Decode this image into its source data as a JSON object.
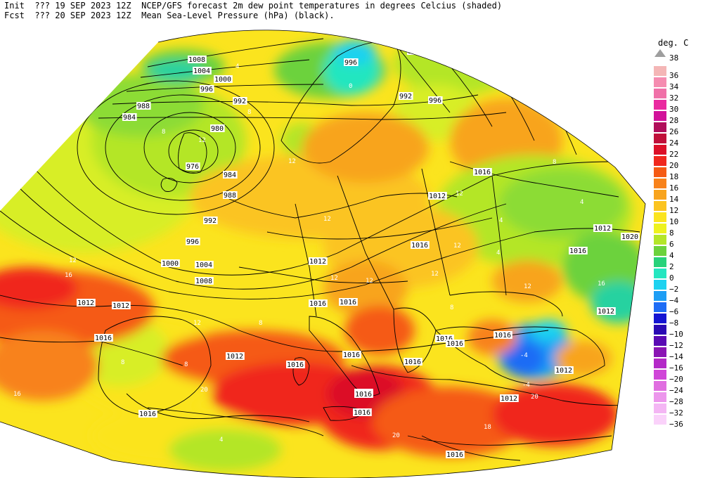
{
  "header": {
    "init_label": "Init",
    "init_time": "??? 19 SEP 2023 12Z",
    "fcst_label": "Fcst",
    "fcst_time": "??? 20 SEP 2023 12Z",
    "line1_desc": "NCEP/GFS forecast 2m dew point temperatures in degrees Celcius (shaded)",
    "line2_desc": "Mean Sea-Level Pressure (hPa) (black)."
  },
  "legend": {
    "unit": "deg. C",
    "top_label": "38",
    "bins": [
      {
        "label": "36",
        "color": "#f4b6b6"
      },
      {
        "label": "34",
        "color": "#f58cb0"
      },
      {
        "label": "32",
        "color": "#f070a8"
      },
      {
        "label": "30",
        "color": "#ea2aa0"
      },
      {
        "label": "28",
        "color": "#d2129a"
      },
      {
        "label": "26",
        "color": "#b00e5a"
      },
      {
        "label": "24",
        "color": "#c0103a"
      },
      {
        "label": "22",
        "color": "#dc1028"
      },
      {
        "label": "20",
        "color": "#f0281e"
      },
      {
        "label": "18",
        "color": "#f55a14"
      },
      {
        "label": "16",
        "color": "#f8821a"
      },
      {
        "label": "14",
        "color": "#f8a41e"
      },
      {
        "label": "12",
        "color": "#fbc420"
      },
      {
        "label": "10",
        "color": "#fbe41e"
      },
      {
        "label": "8",
        "color": "#eef21e"
      },
      {
        "label": "6",
        "color": "#b4e628"
      },
      {
        "label": "4",
        "color": "#6cd23c"
      },
      {
        "label": "2",
        "color": "#28d27a"
      },
      {
        "label": "0",
        "color": "#24e6c0"
      },
      {
        "label": "−2",
        "color": "#1ed2f0"
      },
      {
        "label": "−4",
        "color": "#1e9ef5"
      },
      {
        "label": "−6",
        "color": "#1e6cf5"
      },
      {
        "label": "−8",
        "color": "#1414d2"
      },
      {
        "label": "−10",
        "color": "#2a0ab4"
      },
      {
        "label": "−12",
        "color": "#5a0ab4"
      },
      {
        "label": "−14",
        "color": "#8a14b4"
      },
      {
        "label": "−16",
        "color": "#b428c8"
      },
      {
        "label": "−20",
        "color": "#d046d8"
      },
      {
        "label": "−24",
        "color": "#e06ee0"
      },
      {
        "label": "−28",
        "color": "#ec96ec"
      },
      {
        "label": "−32",
        "color": "#f4b6f4"
      },
      {
        "label": "−36",
        "color": "#fad2fa"
      }
    ]
  },
  "isobar_labels": [
    {
      "text": "988"
    },
    {
      "text": "1008"
    },
    {
      "text": "1004"
    },
    {
      "text": "1000"
    },
    {
      "text": "996"
    },
    {
      "text": "996"
    },
    {
      "text": "992"
    },
    {
      "text": "988"
    },
    {
      "text": "984"
    },
    {
      "text": "980"
    },
    {
      "text": "976"
    },
    {
      "text": "984"
    },
    {
      "text": "988"
    },
    {
      "text": "992"
    },
    {
      "text": "996"
    },
    {
      "text": "1000"
    },
    {
      "text": "1004"
    },
    {
      "text": "1008"
    },
    {
      "text": "1012"
    },
    {
      "text": "1016"
    },
    {
      "text": "1012"
    },
    {
      "text": "1012"
    },
    {
      "text": "1016"
    },
    {
      "text": "1016"
    },
    {
      "text": "1016"
    },
    {
      "text": "1016"
    },
    {
      "text": "1012"
    },
    {
      "text": "1016"
    },
    {
      "text": "1016"
    },
    {
      "text": "1016"
    },
    {
      "text": "1012"
    },
    {
      "text": "1016"
    },
    {
      "text": "1016"
    },
    {
      "text": "1012"
    },
    {
      "text": "1012"
    },
    {
      "text": "1016"
    },
    {
      "text": "1016"
    },
    {
      "text": "1012"
    },
    {
      "text": "1016"
    },
    {
      "text": "1020"
    },
    {
      "text": "1016"
    },
    {
      "text": "992"
    },
    {
      "text": "996"
    },
    {
      "text": "1012"
    },
    {
      "text": "1008"
    },
    {
      "text": "1016"
    },
    {
      "text": "1016"
    },
    {
      "text": "1016"
    }
  ],
  "dewpoint_labels": [
    {
      "text": "12"
    },
    {
      "text": "16"
    },
    {
      "text": "20"
    },
    {
      "text": "20"
    },
    {
      "text": "20"
    },
    {
      "text": "18"
    },
    {
      "text": "12"
    },
    {
      "text": "12"
    },
    {
      "text": "8"
    },
    {
      "text": "8"
    },
    {
      "text": "4"
    },
    {
      "text": "4"
    },
    {
      "text": "12"
    },
    {
      "text": "12"
    },
    {
      "text": "12"
    },
    {
      "text": "12"
    },
    {
      "text": "12"
    },
    {
      "text": "8"
    },
    {
      "text": "8"
    },
    {
      "text": "4"
    },
    {
      "text": "-4"
    },
    {
      "text": "-4"
    },
    {
      "text": "0"
    },
    {
      "text": "4"
    },
    {
      "text": "8"
    },
    {
      "text": "12"
    },
    {
      "text": "16"
    },
    {
      "text": "16"
    },
    {
      "text": "12"
    },
    {
      "text": "8"
    },
    {
      "text": "12"
    },
    {
      "text": "8"
    },
    {
      "text": "4"
    }
  ]
}
